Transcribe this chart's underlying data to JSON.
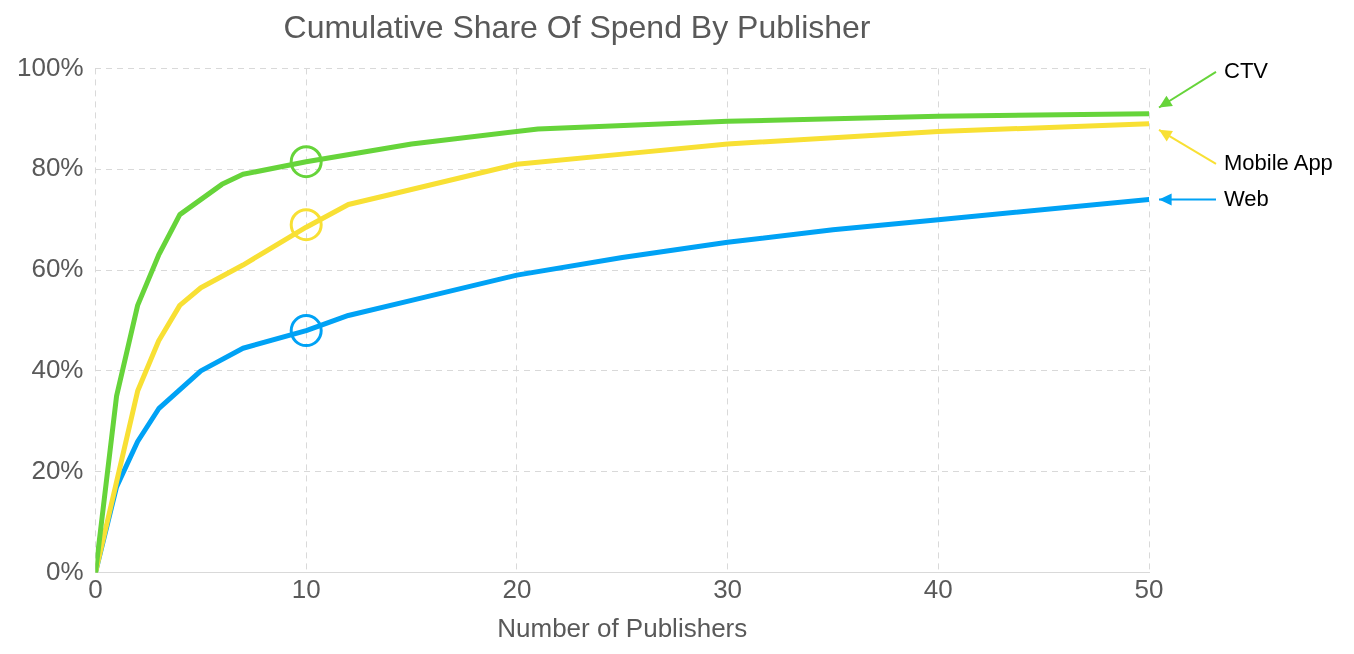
{
  "chart_data": {
    "type": "line",
    "title": "Cumulative Share Of Spend By Publisher",
    "xlabel": "Number of Publishers",
    "xlim": [
      0,
      50
    ],
    "xticks": [
      0,
      10,
      20,
      30,
      40,
      50
    ],
    "ylim": [
      0,
      100
    ],
    "yticks": [
      {
        "value": 0,
        "label": "0%"
      },
      {
        "value": 20,
        "label": "20%"
      },
      {
        "value": 40,
        "label": "40%"
      },
      {
        "value": 60,
        "label": "60%"
      },
      {
        "value": 80,
        "label": "80%"
      },
      {
        "value": 100,
        "label": "100%"
      }
    ],
    "grid": true,
    "legend": "right",
    "marker": "none",
    "line_style": "solid",
    "series": [
      {
        "name": "CTV",
        "color": "#66d43a",
        "x": [
          0,
          1,
          2,
          3,
          4,
          6,
          7,
          10,
          15,
          21,
          30,
          40,
          50
        ],
        "values": [
          0,
          35,
          53,
          63,
          71,
          77,
          79,
          81.5,
          85,
          88,
          89.5,
          90.5,
          91
        ]
      },
      {
        "name": "Mobile App",
        "color": "#f8e034",
        "x": [
          0,
          1,
          2,
          3,
          4,
          5,
          7,
          10,
          12,
          14,
          20,
          25,
          30,
          40,
          50
        ],
        "values": [
          0,
          18,
          36,
          46,
          53,
          56.5,
          61,
          68.5,
          73,
          75,
          81,
          83,
          85,
          87.5,
          89
        ]
      },
      {
        "name": "Web",
        "color": "#00a2f5",
        "x": [
          0,
          1,
          2,
          3,
          5,
          7,
          10,
          12,
          15,
          20,
          25,
          30,
          35,
          40,
          50
        ],
        "values": [
          0,
          17,
          26,
          32.5,
          40,
          44.5,
          48,
          51,
          54,
          59,
          62.5,
          65.5,
          68,
          70,
          74
        ]
      },
      {
        "type": "scatter",
        "marker": "circle",
        "x": [
          10,
          10,
          10
        ],
        "values": [
          81.5,
          69,
          48
        ],
        "colors": [
          "#66d43a",
          "#f8e034",
          "#00a2f5"
        ]
      }
    ]
  }
}
